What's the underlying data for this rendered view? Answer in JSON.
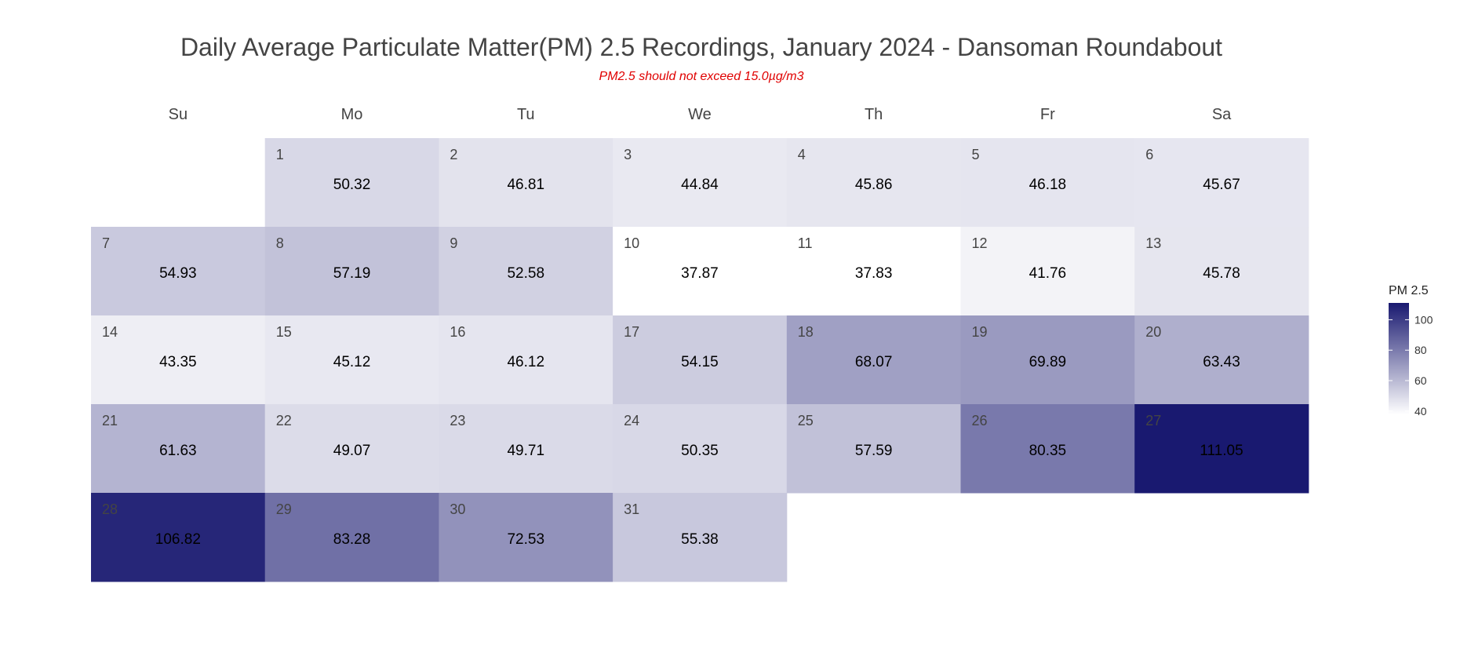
{
  "title": "Daily Average Particulate Matter(PM) 2.5 Recordings, January 2024 - Dansoman Roundabout",
  "subtitle": "PM2.5 should not exceed 15.0µg/m3",
  "chart_data": {
    "type": "heatmap",
    "title": "Daily Average Particulate Matter(PM) 2.5 Recordings, January 2024 - Dansoman Roundabout",
    "subtitle": "PM2.5 should not exceed 15.0µg/m3",
    "weekdays": [
      "Su",
      "Mo",
      "Tu",
      "We",
      "Th",
      "Fr",
      "Sa"
    ],
    "first_weekday_index": 1,
    "days": [
      1,
      2,
      3,
      4,
      5,
      6,
      7,
      8,
      9,
      10,
      11,
      12,
      13,
      14,
      15,
      16,
      17,
      18,
      19,
      20,
      21,
      22,
      23,
      24,
      25,
      26,
      27,
      28,
      29,
      30,
      31
    ],
    "values": [
      50.32,
      46.81,
      44.84,
      45.86,
      46.18,
      45.67,
      54.93,
      57.19,
      52.58,
      37.87,
      37.83,
      41.76,
      45.78,
      43.35,
      45.12,
      46.12,
      54.15,
      68.07,
      69.89,
      63.43,
      61.63,
      49.07,
      49.71,
      50.35,
      57.59,
      80.35,
      111.05,
      106.82,
      83.28,
      72.53,
      55.38
    ],
    "value_labels": [
      "50.32",
      "46.81",
      "44.84",
      "45.86",
      "46.18",
      "45.67",
      "54.93",
      "57.19",
      "52.58",
      "37.87",
      "37.83",
      "41.76",
      "45.78",
      "43.35",
      "45.12",
      "46.12",
      "54.15",
      "68.07",
      "69.89",
      "63.43",
      "61.63",
      "49.07",
      "49.71",
      "50.35",
      "57.59",
      "80.35",
      "111.05",
      "106.82",
      "83.28",
      "72.53",
      "55.38"
    ],
    "legend": {
      "title": "PM 2.5",
      "ticks": [
        40,
        60,
        80,
        100
      ],
      "tick_labels": [
        "40",
        "60",
        "80",
        "100"
      ],
      "range": [
        37.83,
        111.05
      ],
      "color_low": "#ffffff",
      "color_high": "#191970",
      "placement": "right"
    }
  }
}
